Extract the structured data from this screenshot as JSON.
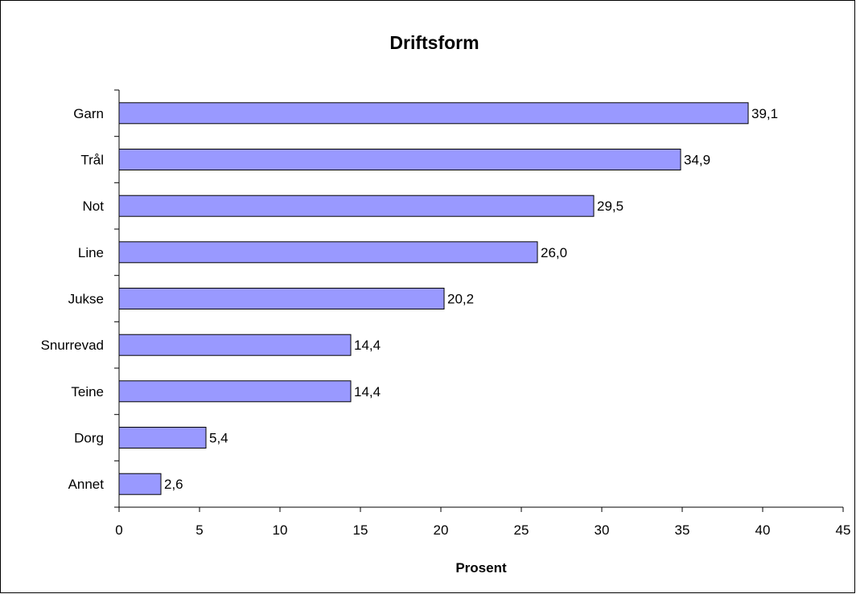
{
  "chart_data": {
    "type": "bar",
    "orientation": "horizontal",
    "title": "Driftsform",
    "xlabel": "Prosent",
    "ylabel": "",
    "xlim": [
      0,
      45
    ],
    "xticks": [
      0,
      5,
      10,
      15,
      20,
      25,
      30,
      35,
      40,
      45
    ],
    "categories": [
      "Garn",
      "Trål",
      "Not",
      "Line",
      "Jukse",
      "Snurrevad",
      "Teine",
      "Dorg",
      "Annet"
    ],
    "values": [
      39.1,
      34.9,
      29.5,
      26.0,
      20.2,
      14.4,
      14.4,
      5.4,
      2.6
    ],
    "value_labels": [
      "39,1",
      "34,9",
      "29,5",
      "26,0",
      "20,2",
      "14,4",
      "14,4",
      "5,4",
      "2,6"
    ],
    "bar_color": "#9999ff",
    "bar_edge_color": "#000000",
    "grid": false,
    "legend": "none"
  }
}
